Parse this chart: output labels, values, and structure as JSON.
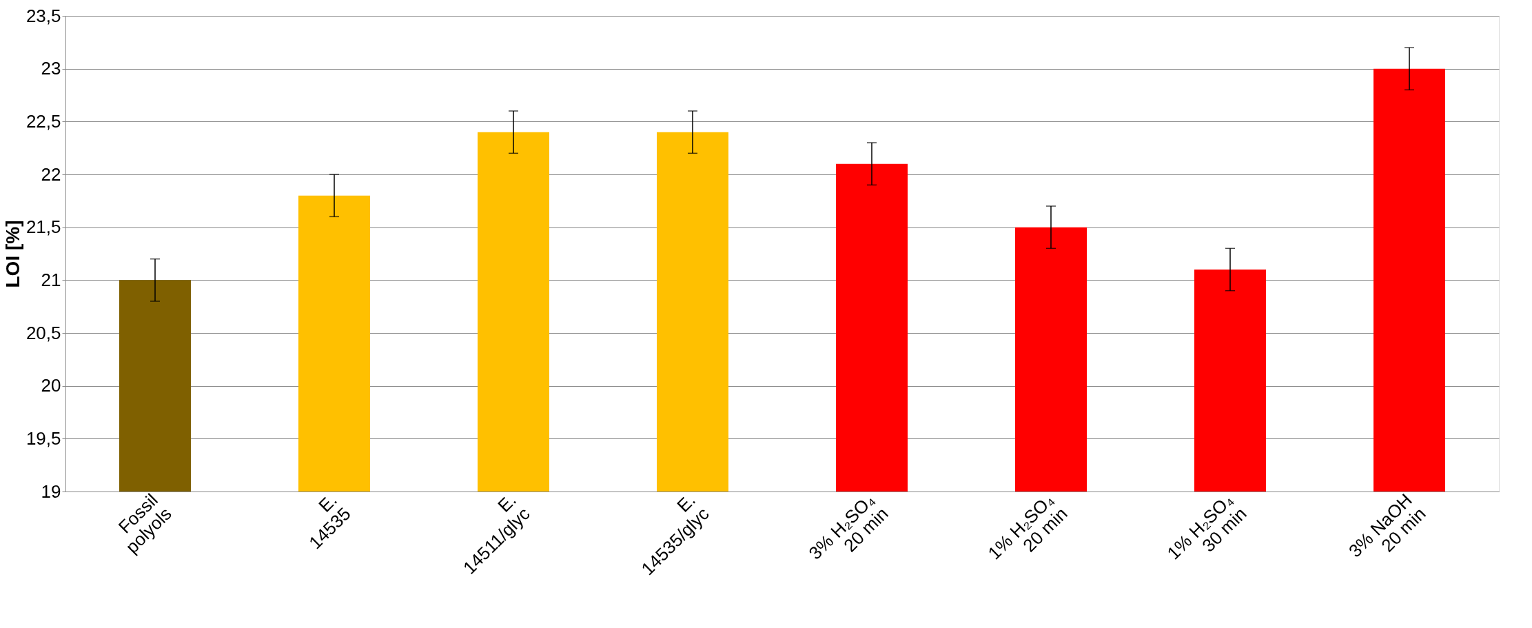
{
  "chart_data": {
    "type": "bar",
    "ylabel": "LOI [%]",
    "categories": [
      "Fossil\npolyols",
      "E.\n14535",
      "E.\n14511/glyc",
      "E.\n14535/glyc",
      "3% H₂SO₄\n20 min",
      "1% H₂SO₄\n20 min",
      "1% H₂SO₄\n30 min",
      "3% NaOH\n20 min"
    ],
    "values": [
      21.0,
      21.8,
      22.4,
      22.4,
      22.1,
      21.5,
      21.1,
      23.0
    ],
    "errors": [
      0.2,
      0.2,
      0.2,
      0.2,
      0.2,
      0.2,
      0.2,
      0.2
    ],
    "colors": [
      "#7f6000",
      "#ffc000",
      "#ffc000",
      "#ffc000",
      "#ff0000",
      "#ff0000",
      "#ff0000",
      "#ff0000"
    ],
    "ylim": [
      19,
      23.5
    ],
    "yticks": [
      19,
      {
        "value": 19.5,
        "label": "19,5"
      },
      20,
      {
        "value": 20.5,
        "label": "20,5"
      },
      21,
      {
        "value": 21.5,
        "label": "21,5"
      },
      22,
      {
        "value": 22.5,
        "label": "22,5"
      },
      23,
      {
        "value": 23.5,
        "label": "23,5"
      }
    ],
    "grid": "y"
  }
}
